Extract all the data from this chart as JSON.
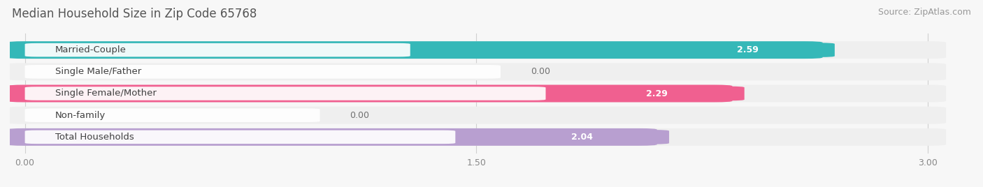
{
  "title": "Median Household Size in Zip Code 65768",
  "source": "Source: ZipAtlas.com",
  "categories": [
    "Married-Couple",
    "Single Male/Father",
    "Single Female/Mother",
    "Non-family",
    "Total Households"
  ],
  "values": [
    2.59,
    0.0,
    2.29,
    0.0,
    2.04
  ],
  "bar_colors": [
    "#35b8b8",
    "#a8b8e8",
    "#f06090",
    "#f5c898",
    "#b89fd0"
  ],
  "bar_bg_color": "#efefef",
  "xlim_max": 3.0,
  "xticks": [
    0.0,
    1.5,
    3.0
  ],
  "xtick_labels": [
    "0.00",
    "1.50",
    "3.00"
  ],
  "background_color": "#f7f7f7",
  "title_fontsize": 12,
  "label_fontsize": 9.5,
  "value_fontsize": 9,
  "source_fontsize": 9
}
